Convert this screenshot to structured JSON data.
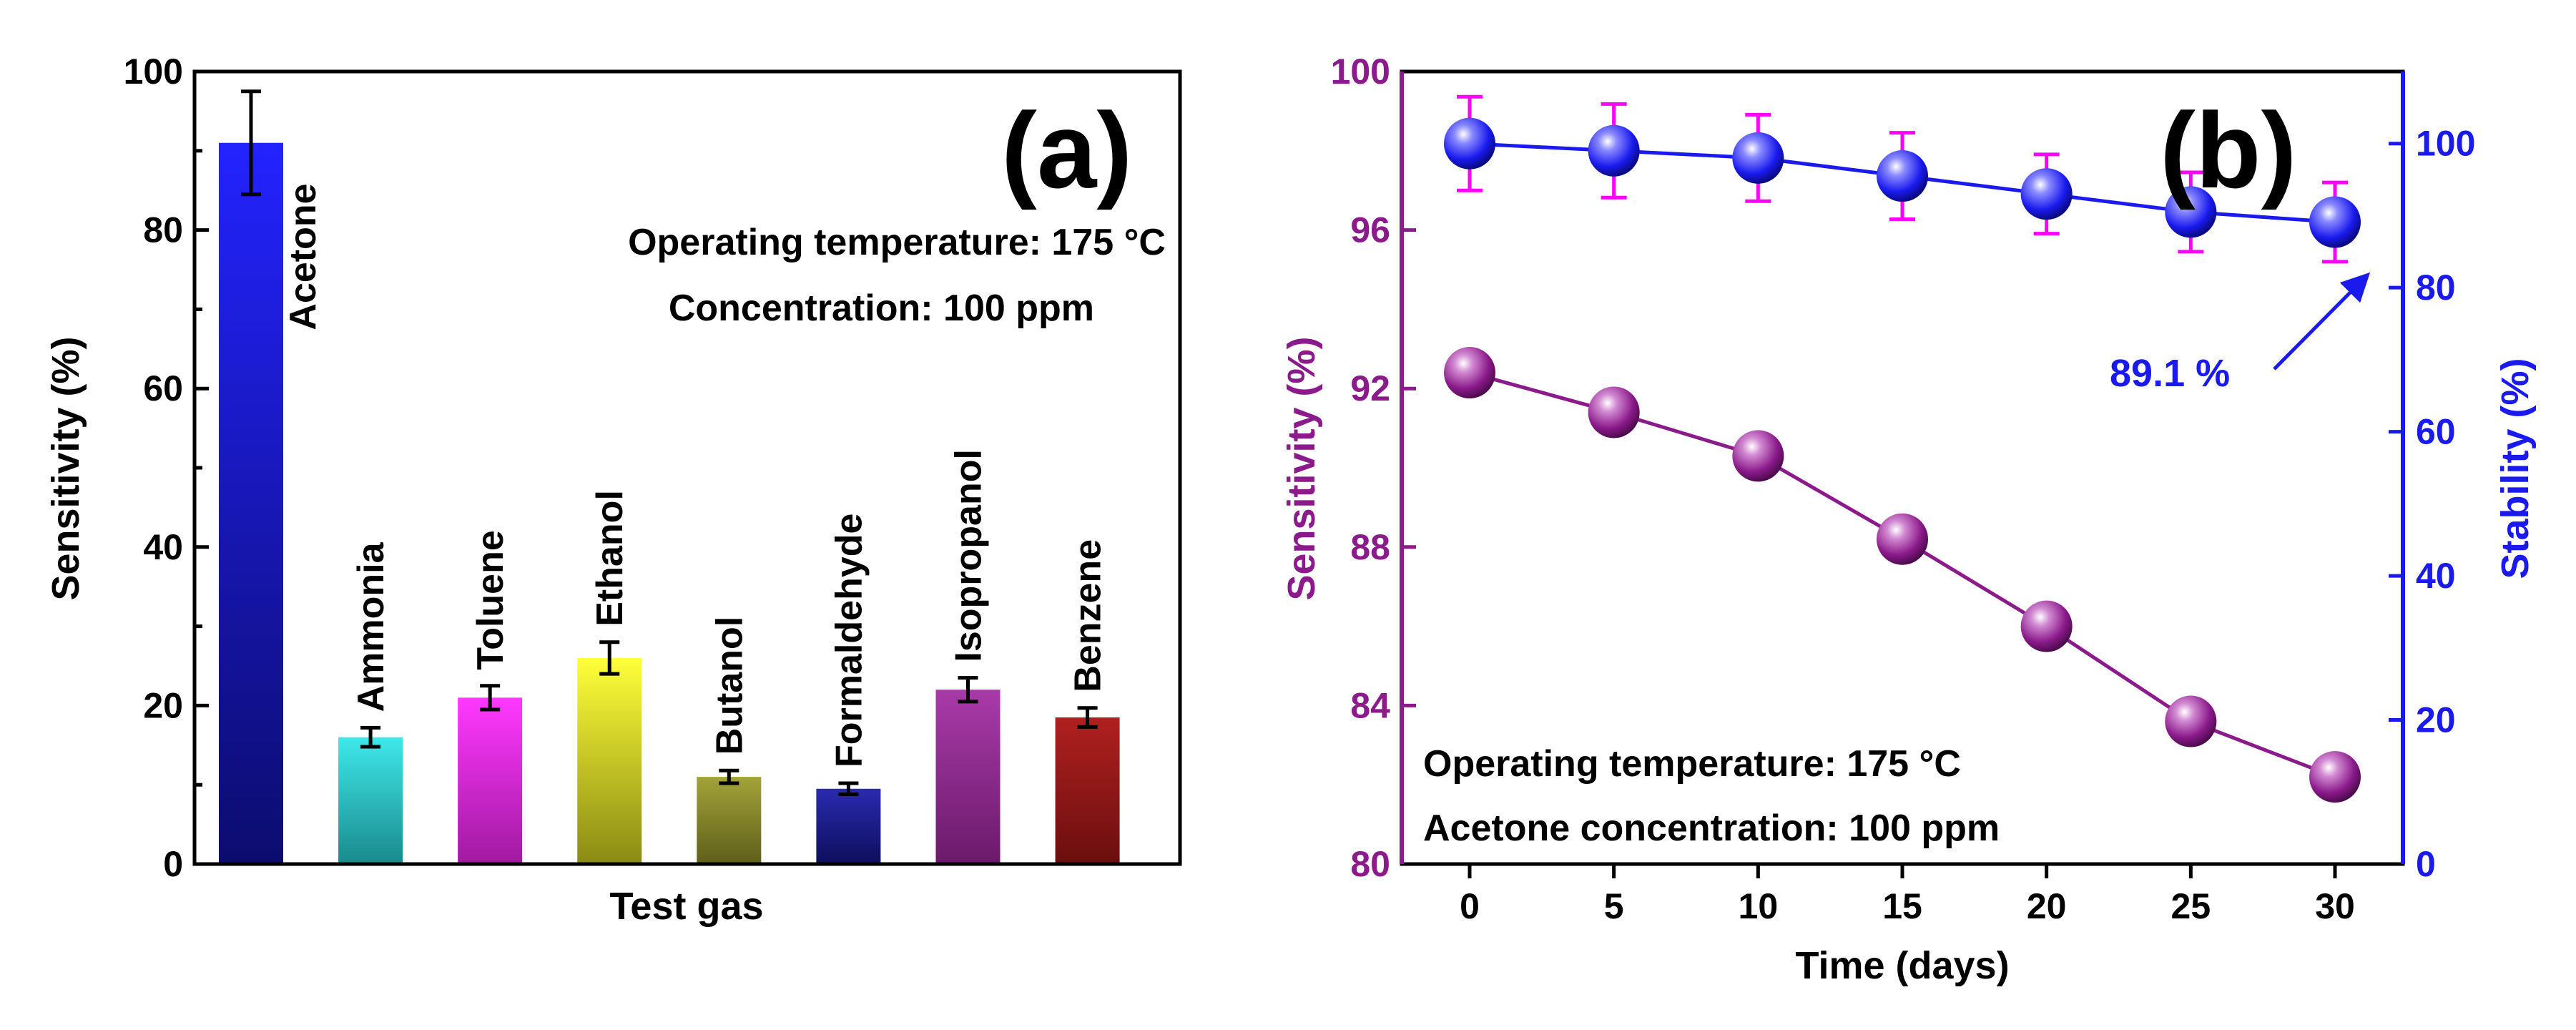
{
  "chart_data": [
    {
      "type": "bar",
      "panel_label": "(a)",
      "xlabel": "Test gas",
      "ylabel": "Sensitivity (%)",
      "ylim": [
        0,
        100
      ],
      "yticks": [
        "0",
        "20",
        "40",
        "60",
        "80",
        "100"
      ],
      "categories": [
        "Acetone",
        "Ammonia",
        "Toluene",
        "Ethanol",
        "Butanol",
        "Formaldehyde",
        "Isopropanol",
        "Benzene"
      ],
      "values": [
        91,
        16,
        21,
        26,
        11,
        9.5,
        22,
        18.5
      ],
      "errors": [
        6.5,
        1.2,
        1.5,
        2,
        0.8,
        0.7,
        1.5,
        1.2
      ],
      "colors": [
        [
          "#2323ff",
          "#0c0c6e"
        ],
        [
          "#3ee8ea",
          "#1a8a8c"
        ],
        [
          "#ff38ff",
          "#a01aa0"
        ],
        [
          "#ffff3a",
          "#8a8a14"
        ],
        [
          "#a3a33a",
          "#5e5e1a"
        ],
        [
          "#2a2ab0",
          "#0e0e5c"
        ],
        [
          "#a93aa9",
          "#6a1a6a"
        ],
        [
          "#b02020",
          "#6a0e0e"
        ]
      ],
      "annotations": [
        "Operating temperature: 175 °C",
        "Concentration: 100 ppm"
      ]
    },
    {
      "type": "line",
      "panel_label": "(b)",
      "xlabel": "Time (days)",
      "ylabel_left": "Sensitivity (%)",
      "ylabel_right": "Stability (%)",
      "x": [
        0,
        5,
        10,
        15,
        20,
        25,
        30
      ],
      "xticks": [
        "0",
        "5",
        "10",
        "15",
        "20",
        "25",
        "30"
      ],
      "ylim_left": [
        80,
        100
      ],
      "yticks_left": [
        "80",
        "84",
        "88",
        "92",
        "96",
        "100"
      ],
      "ylim_right": [
        0,
        110
      ],
      "yticks_right": [
        "0",
        "20",
        "40",
        "60",
        "80",
        "100"
      ],
      "series": [
        {
          "name": "Sensitivity",
          "axis": "left",
          "color": "#8b1a8b",
          "values": [
            92.4,
            91.4,
            90.3,
            88.2,
            86.0,
            83.6,
            82.2
          ]
        },
        {
          "name": "Stability",
          "axis": "right",
          "color": "#1a1aee",
          "values": [
            100,
            99,
            98,
            95.5,
            93,
            90.5,
            89.1
          ],
          "errors": [
            6.5,
            6.5,
            6,
            6,
            5.5,
            5.5,
            5.5
          ]
        }
      ],
      "callout": "89.1 %",
      "annotations": [
        "Operating temperature: 175 °C",
        "Acetone concentration: 100 ppm"
      ]
    }
  ]
}
